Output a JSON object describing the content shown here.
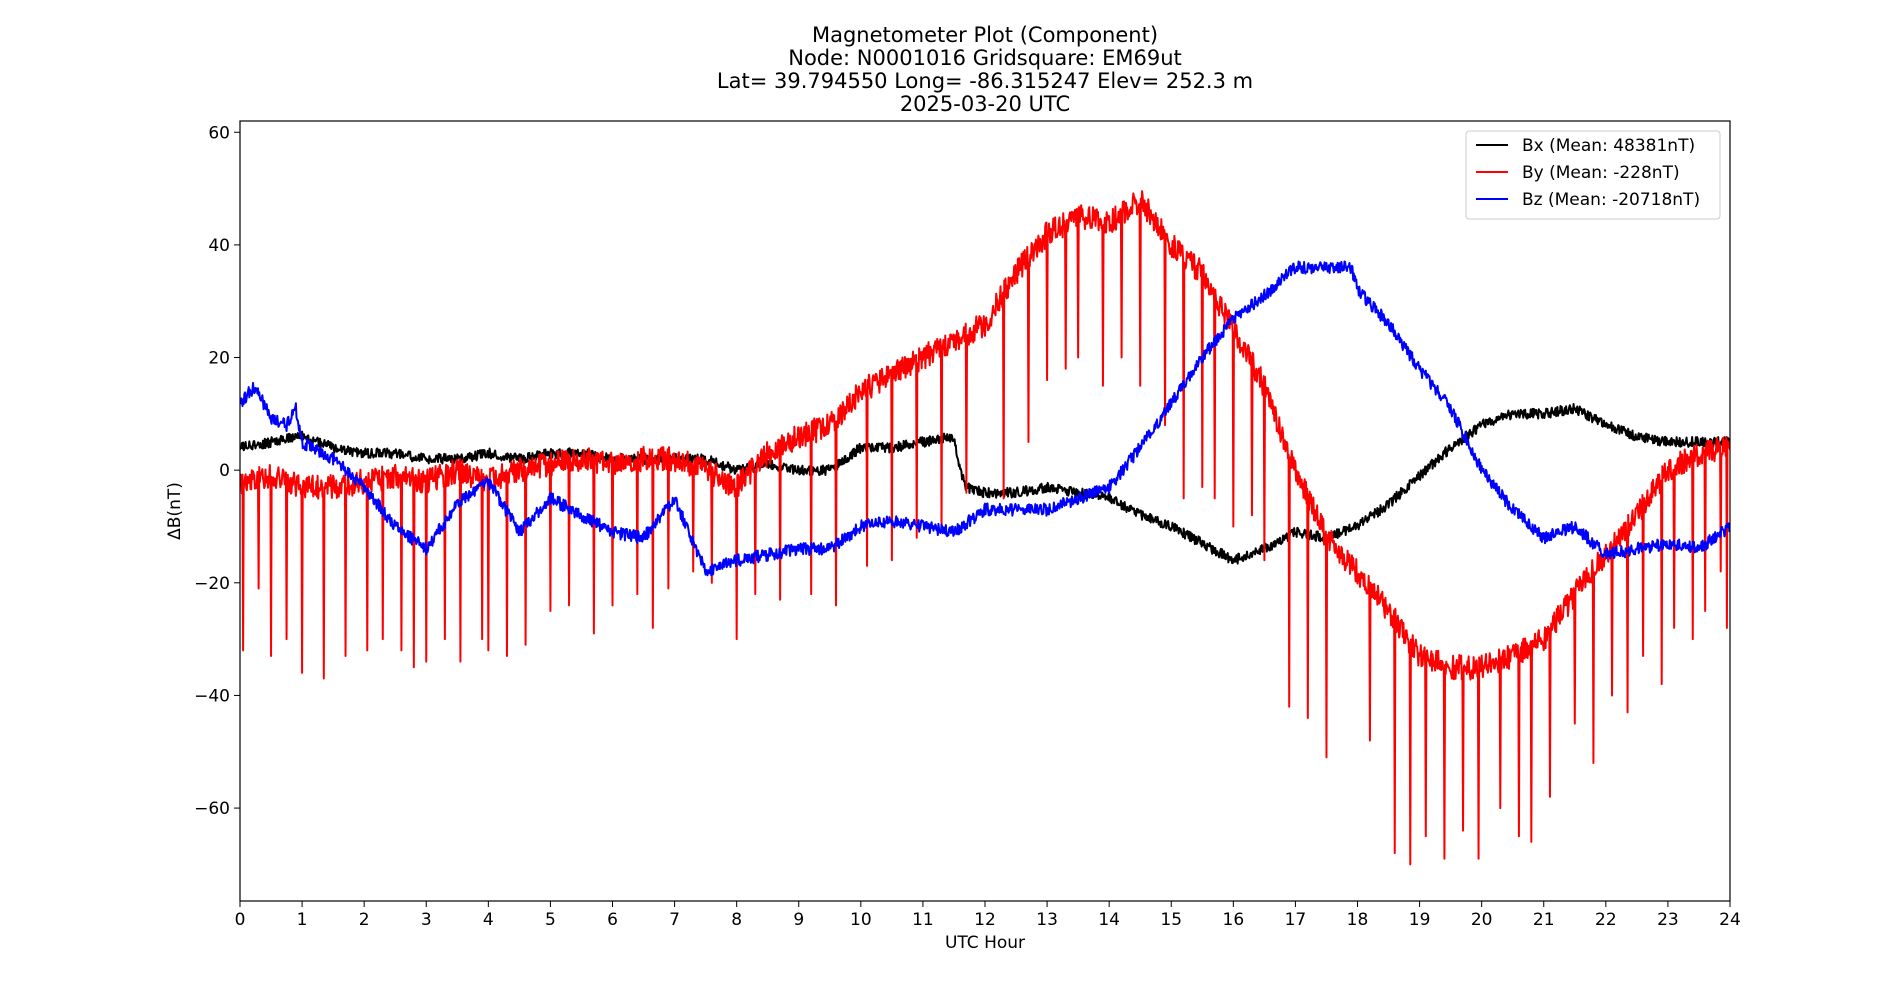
{
  "chart_data": {
    "type": "line",
    "title": [
      "Magnetometer Plot (Component)",
      "Node:  N0001016     Gridsquare:  EM69ut",
      "Lat= 39.794550    Long= -86.315247    Elev= 252.3 m",
      "2025-03-20  UTC"
    ],
    "xlabel": "UTC Hour",
    "ylabel": "ΔB(nT)",
    "xlim": [
      0,
      24
    ],
    "ylim": [
      -76.5,
      62
    ],
    "xticks": [
      0,
      1,
      2,
      3,
      4,
      5,
      6,
      7,
      8,
      9,
      10,
      11,
      12,
      13,
      14,
      15,
      16,
      17,
      18,
      19,
      20,
      21,
      22,
      23,
      24
    ],
    "xtick_labels": [
      "0",
      "1",
      "2",
      "3",
      "4",
      "5",
      "6",
      "7",
      "8",
      "9",
      "10",
      "11",
      "12",
      "13",
      "14",
      "15",
      "16",
      "17",
      "18",
      "19",
      "20",
      "21",
      "22",
      "23",
      "24"
    ],
    "yticks": [
      60,
      40,
      20,
      0,
      -20,
      -40,
      -60
    ],
    "ytick_labels": [
      "60",
      "40",
      "20",
      "0",
      "−20",
      "−40",
      "−60"
    ],
    "grid": false,
    "legend_position": "top-right",
    "series": [
      {
        "name": "Bx",
        "label": "Bx (Mean: 48381nT)",
        "color": "#000000",
        "x": [
          0,
          0.5,
          1,
          1.5,
          2,
          2.5,
          3,
          3.5,
          4,
          4.5,
          5,
          5.5,
          6,
          6.5,
          7,
          7.5,
          8,
          8.5,
          9,
          9.5,
          10,
          10.5,
          11,
          11.5,
          11.6,
          11.7,
          12,
          12.5,
          13,
          13.5,
          14,
          14.5,
          15,
          15.5,
          16,
          16.5,
          17,
          17.5,
          18,
          18.5,
          19,
          19.5,
          20,
          20.5,
          21,
          21.5,
          22,
          22.5,
          23,
          23.5,
          24
        ],
        "y": [
          4,
          5,
          6,
          4,
          3,
          3,
          2,
          2,
          3,
          2,
          3,
          3,
          2,
          2,
          2,
          2,
          0,
          1,
          0,
          0,
          4,
          4,
          5,
          6,
          0,
          -3,
          -4,
          -4,
          -3,
          -4,
          -5,
          -8,
          -10,
          -13,
          -16,
          -14,
          -11,
          -12,
          -10,
          -6,
          -1,
          4,
          8,
          10,
          10,
          11,
          8,
          6,
          5,
          5,
          5
        ]
      },
      {
        "name": "By",
        "label": "By (Mean: -228nT)",
        "color": "#ff0000",
        "x": [
          0,
          0.5,
          1,
          1.5,
          2,
          2.5,
          3,
          3.5,
          4,
          4.5,
          5,
          5.5,
          6,
          6.5,
          7,
          7.5,
          8,
          8.5,
          9,
          9.5,
          10,
          10.5,
          11,
          11.5,
          12,
          12.5,
          13,
          13.5,
          14,
          14.5,
          15,
          15.5,
          16,
          16.5,
          17,
          17.5,
          18,
          18.5,
          19,
          19.5,
          20,
          20.5,
          21,
          21.5,
          22,
          22.5,
          23,
          23.5,
          24
        ],
        "y": [
          -2,
          -1,
          -3,
          -3,
          -2,
          -1,
          -2,
          0,
          -2,
          0,
          1,
          2,
          1,
          2,
          2,
          0,
          -3,
          3,
          6,
          8,
          14,
          17,
          20,
          23,
          26,
          35,
          42,
          45,
          44,
          48,
          40,
          35,
          25,
          15,
          0,
          -12,
          -18,
          -25,
          -33,
          -35,
          -35,
          -33,
          -30,
          -22,
          -15,
          -8,
          0,
          3,
          4
        ],
        "spikes": [
          {
            "x": 0.05,
            "y": -32
          },
          {
            "x": 0.3,
            "y": -21
          },
          {
            "x": 0.5,
            "y": -33
          },
          {
            "x": 0.75,
            "y": -30
          },
          {
            "x": 1.0,
            "y": -36
          },
          {
            "x": 1.35,
            "y": -37
          },
          {
            "x": 1.7,
            "y": -33
          },
          {
            "x": 2.05,
            "y": -32
          },
          {
            "x": 2.3,
            "y": -30
          },
          {
            "x": 2.6,
            "y": -32
          },
          {
            "x": 2.8,
            "y": -35
          },
          {
            "x": 3.0,
            "y": -34
          },
          {
            "x": 3.3,
            "y": -30
          },
          {
            "x": 3.55,
            "y": -34
          },
          {
            "x": 3.9,
            "y": -30
          },
          {
            "x": 4.0,
            "y": -32
          },
          {
            "x": 4.3,
            "y": -33
          },
          {
            "x": 4.6,
            "y": -31
          },
          {
            "x": 5.0,
            "y": -25
          },
          {
            "x": 5.3,
            "y": -24
          },
          {
            "x": 5.7,
            "y": -29
          },
          {
            "x": 6.0,
            "y": -24
          },
          {
            "x": 6.4,
            "y": -22
          },
          {
            "x": 6.65,
            "y": -28
          },
          {
            "x": 6.9,
            "y": -21
          },
          {
            "x": 7.3,
            "y": -18
          },
          {
            "x": 7.6,
            "y": -20
          },
          {
            "x": 8.0,
            "y": -30
          },
          {
            "x": 8.3,
            "y": -22
          },
          {
            "x": 8.7,
            "y": -23
          },
          {
            "x": 9.2,
            "y": -22
          },
          {
            "x": 9.6,
            "y": -24
          },
          {
            "x": 10.1,
            "y": -17
          },
          {
            "x": 10.5,
            "y": -16
          },
          {
            "x": 10.9,
            "y": -12
          },
          {
            "x": 11.3,
            "y": -10
          },
          {
            "x": 11.7,
            "y": -4
          },
          {
            "x": 12.3,
            "y": -5
          },
          {
            "x": 12.7,
            "y": 5
          },
          {
            "x": 13.0,
            "y": 16
          },
          {
            "x": 13.3,
            "y": 18
          },
          {
            "x": 13.5,
            "y": 20
          },
          {
            "x": 13.9,
            "y": 15
          },
          {
            "x": 14.2,
            "y": 20
          },
          {
            "x": 14.5,
            "y": 15
          },
          {
            "x": 14.9,
            "y": 8
          },
          {
            "x": 15.2,
            "y": -5
          },
          {
            "x": 15.5,
            "y": -3
          },
          {
            "x": 15.7,
            "y": -5
          },
          {
            "x": 16.0,
            "y": -10
          },
          {
            "x": 16.3,
            "y": -8
          },
          {
            "x": 16.5,
            "y": -16
          },
          {
            "x": 16.9,
            "y": -42
          },
          {
            "x": 17.2,
            "y": -44
          },
          {
            "x": 17.5,
            "y": -51
          },
          {
            "x": 18.2,
            "y": -48
          },
          {
            "x": 18.6,
            "y": -68
          },
          {
            "x": 18.85,
            "y": -70
          },
          {
            "x": 19.1,
            "y": -65
          },
          {
            "x": 19.4,
            "y": -69
          },
          {
            "x": 19.7,
            "y": -64
          },
          {
            "x": 19.95,
            "y": -69
          },
          {
            "x": 20.3,
            "y": -60
          },
          {
            "x": 20.6,
            "y": -65
          },
          {
            "x": 20.8,
            "y": -66
          },
          {
            "x": 21.1,
            "y": -58
          },
          {
            "x": 21.5,
            "y": -45
          },
          {
            "x": 21.8,
            "y": -52
          },
          {
            "x": 22.1,
            "y": -40
          },
          {
            "x": 22.35,
            "y": -43
          },
          {
            "x": 22.6,
            "y": -33
          },
          {
            "x": 22.9,
            "y": -38
          },
          {
            "x": 23.1,
            "y": -28
          },
          {
            "x": 23.4,
            "y": -30
          },
          {
            "x": 23.6,
            "y": -25
          },
          {
            "x": 23.85,
            "y": -18
          },
          {
            "x": 23.95,
            "y": -28
          }
        ]
      },
      {
        "name": "Bz",
        "label": "Bz (Mean: -20718nT)",
        "color": "#0000ff",
        "x": [
          0,
          0.25,
          0.5,
          0.75,
          0.9,
          1,
          1.5,
          2,
          2.5,
          3,
          3.5,
          4,
          4.5,
          5,
          5.5,
          6,
          6.5,
          7,
          7.5,
          8,
          8.5,
          9,
          9.5,
          10,
          10.5,
          11,
          11.5,
          12,
          12.5,
          13,
          13.5,
          14,
          14.5,
          15,
          15.5,
          16,
          16.5,
          17,
          17.5,
          17.9,
          18,
          18.5,
          19,
          19.5,
          20,
          20.5,
          21,
          21.5,
          22,
          22.5,
          23,
          23.5,
          24
        ],
        "y": [
          12,
          15,
          9,
          8,
          11,
          5,
          2,
          -3,
          -10,
          -14,
          -6,
          -2,
          -11,
          -5,
          -8,
          -11,
          -12,
          -5,
          -18,
          -16,
          -15,
          -14,
          -14,
          -10,
          -9,
          -10,
          -11,
          -7,
          -7,
          -7,
          -5,
          -3,
          4,
          12,
          20,
          27,
          31,
          36,
          36,
          36,
          32,
          26,
          18,
          11,
          0,
          -7,
          -12,
          -10,
          -15,
          -14,
          -13,
          -14,
          -10
        ]
      }
    ]
  }
}
